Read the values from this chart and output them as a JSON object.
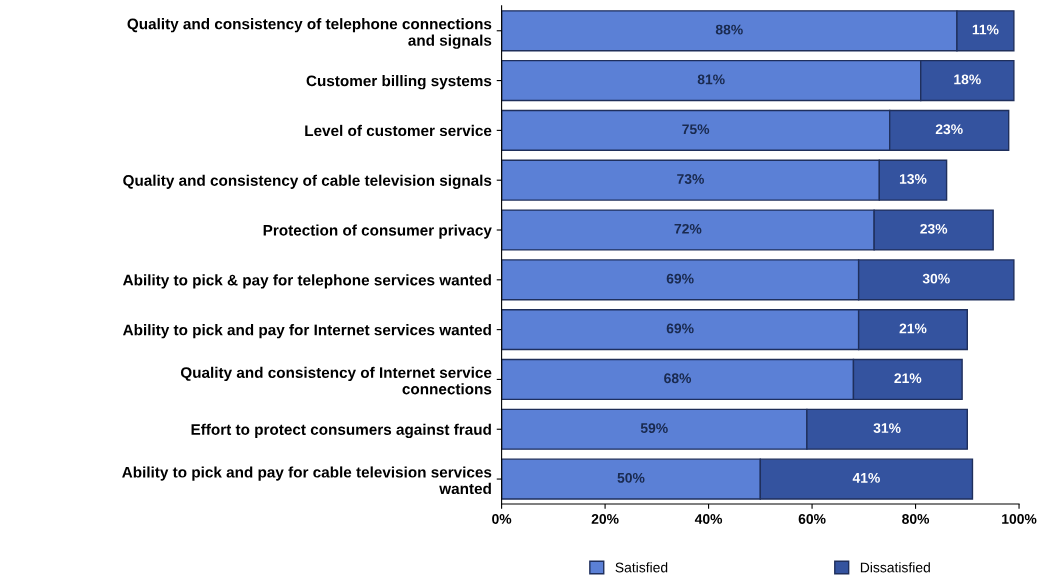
{
  "chart_data": {
    "type": "bar",
    "orientation": "horizontal",
    "stacked": true,
    "categories": [
      "Quality and consistency of telephone connections\nand signals",
      "Customer billing systems",
      "Level of customer service",
      "Quality and consistency of cable television signals",
      "Protection of consumer privacy",
      "Ability to pick & pay for telephone services wanted",
      "Ability to pick and pay for Internet services wanted",
      "Quality and consistency of Internet service\nconnections",
      "Effort to protect consumers against fraud",
      "Ability to pick and pay for cable television services\nwanted"
    ],
    "series": [
      {
        "name": "Satisfied",
        "color": "#5b80d6",
        "values": [
          88,
          81,
          75,
          73,
          72,
          69,
          69,
          68,
          59,
          50
        ]
      },
      {
        "name": "Dissatisfied",
        "color": "#34539f",
        "values": [
          11,
          18,
          23,
          13,
          23,
          30,
          21,
          21,
          31,
          41
        ]
      }
    ],
    "xlim": [
      0,
      100
    ],
    "xticks": [
      {
        "value": 0,
        "label": "0%"
      },
      {
        "value": 20,
        "label": "20%"
      },
      {
        "value": 40,
        "label": "40%"
      },
      {
        "value": 60,
        "label": "60%"
      },
      {
        "value": 80,
        "label": "80%"
      },
      {
        "value": 100,
        "label": "100%"
      }
    ],
    "value_labels": [
      [
        "88%",
        "81%",
        "75%",
        "73%",
        "72%",
        "69%",
        "69%",
        "68%",
        "59%",
        "50%"
      ],
      [
        "11%",
        "18%",
        "23%",
        "13%",
        "23%",
        "30%",
        "21%",
        "21%",
        "31%",
        "41%"
      ]
    ],
    "grid": false,
    "legend": "bottom"
  }
}
